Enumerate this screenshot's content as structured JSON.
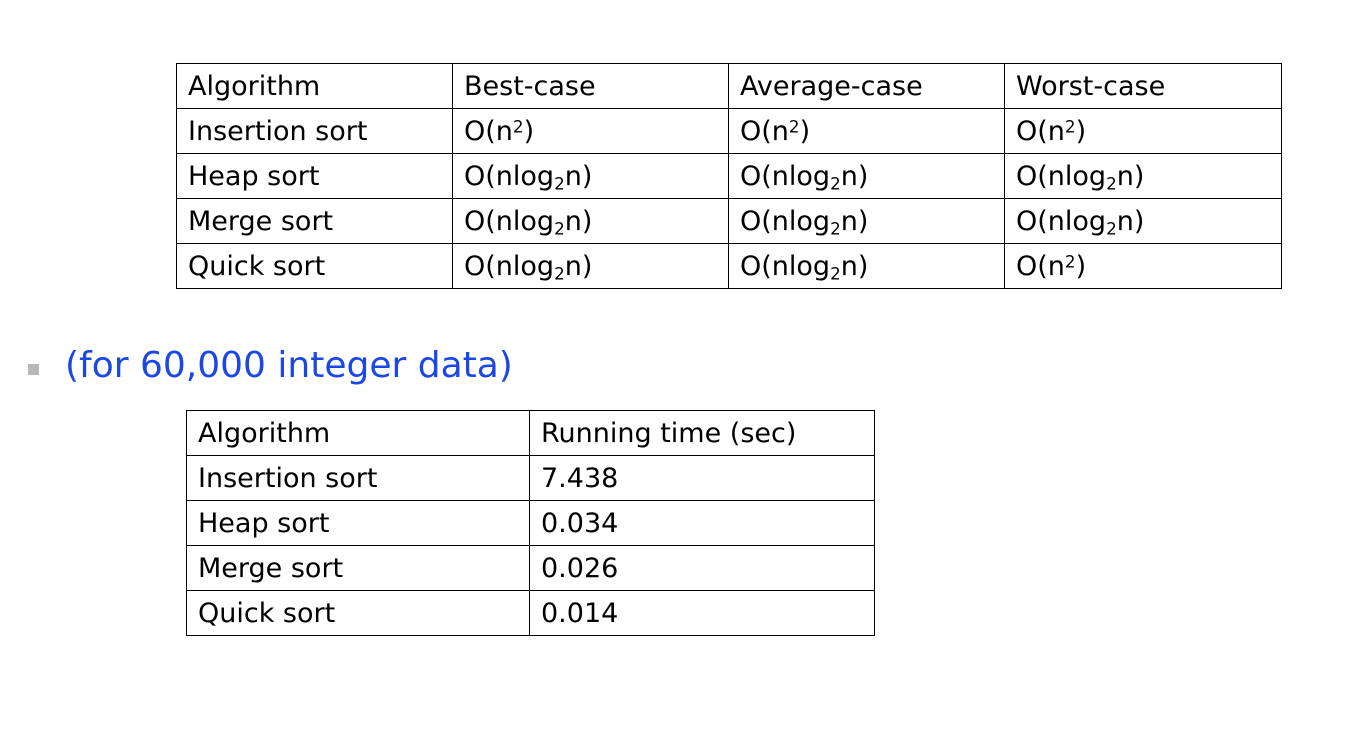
{
  "complexity_table": {
    "headers": [
      "Algorithm",
      "Best-case",
      "Average-case",
      "Worst-case"
    ],
    "rows": [
      {
        "algorithm": "Insertion sort",
        "best": {
          "base": "O(n",
          "sup": "2",
          "sub": "",
          "tail": ")"
        },
        "average": {
          "base": "O(n",
          "sup": "2",
          "sub": "",
          "tail": ")"
        },
        "worst": {
          "base": "O(n",
          "sup": "2",
          "sub": "",
          "tail": ")"
        }
      },
      {
        "algorithm": "Heap sort",
        "best": {
          "base": "O(nlog",
          "sup": "",
          "sub": "2",
          "tail": "n)"
        },
        "average": {
          "base": "O(nlog",
          "sup": "",
          "sub": "2",
          "tail": "n)"
        },
        "worst": {
          "base": "O(nlog",
          "sup": "",
          "sub": "2",
          "tail": "n)"
        }
      },
      {
        "algorithm": "Merge sort",
        "best": {
          "base": "O(nlog",
          "sup": "",
          "sub": "2",
          "tail": "n)"
        },
        "average": {
          "base": "O(nlog",
          "sup": "",
          "sub": "2",
          "tail": "n)"
        },
        "worst": {
          "base": "O(nlog",
          "sup": "",
          "sub": "2",
          "tail": "n)"
        }
      },
      {
        "algorithm": "Quick sort",
        "best": {
          "base": "O(nlog",
          "sup": "",
          "sub": "2",
          "tail": "n)"
        },
        "average": {
          "base": "O(nlog",
          "sup": "",
          "sub": "2",
          "tail": "n)"
        },
        "worst": {
          "base": "O(n",
          "sup": "2",
          "sub": "",
          "tail": ")"
        }
      }
    ]
  },
  "caption": {
    "text": "(for 60,000 integer data)",
    "color": "#1a47e6",
    "bullet_color": "#b8b8b8"
  },
  "runtime_table": {
    "headers": [
      "Algorithm",
      "Running time (sec)"
    ],
    "rows": [
      {
        "algorithm": "Insertion sort",
        "time": "7.438"
      },
      {
        "algorithm": "Heap sort",
        "time": "0.034"
      },
      {
        "algorithm": "Merge sort",
        "time": "0.026"
      },
      {
        "algorithm": "Quick sort",
        "time": "0.014"
      }
    ]
  }
}
